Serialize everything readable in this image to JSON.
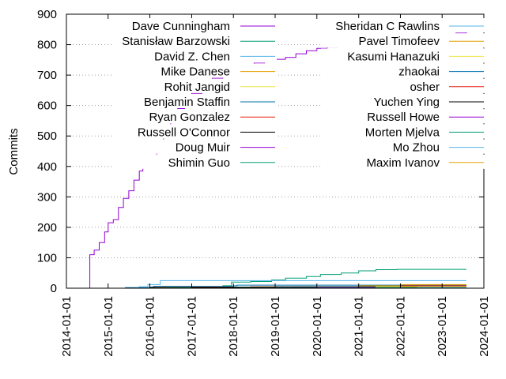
{
  "chart_data": {
    "type": "line",
    "title": "",
    "xlabel": "",
    "ylabel": "Commits",
    "x_type": "date",
    "xlim": [
      "2014-01-01",
      "2024-01-01"
    ],
    "ylim": [
      0,
      900
    ],
    "x_ticks": [
      "2014-01-01",
      "2015-01-01",
      "2016-01-01",
      "2017-01-01",
      "2018-01-01",
      "2019-01-01",
      "2020-01-01",
      "2021-01-01",
      "2022-01-01",
      "2023-01-01",
      "2024-01-01"
    ],
    "y_ticks": [
      0,
      100,
      200,
      300,
      400,
      500,
      600,
      700,
      800,
      900
    ],
    "grid": "horizontal dotted at y ticks 300 and above",
    "legend_placement": "top, two columns",
    "series": [
      {
        "name": "Dave Cunningham",
        "color": "#9400d3",
        "points": [
          [
            "2014-07-10",
            0
          ],
          [
            "2014-07-25",
            110
          ],
          [
            "2014-09-01",
            125
          ],
          [
            "2014-10-15",
            150
          ],
          [
            "2014-12-01",
            185
          ],
          [
            "2015-01-01",
            215
          ],
          [
            "2015-02-15",
            225
          ],
          [
            "2015-04-01",
            265
          ],
          [
            "2015-05-15",
            295
          ],
          [
            "2015-07-01",
            320
          ],
          [
            "2015-08-15",
            355
          ],
          [
            "2015-10-01",
            385
          ],
          [
            "2015-11-01",
            405
          ],
          [
            "2016-01-01",
            425
          ],
          [
            "2016-03-01",
            455
          ],
          [
            "2016-05-01",
            500
          ],
          [
            "2016-07-01",
            550
          ],
          [
            "2016-09-01",
            590
          ],
          [
            "2016-11-01",
            620
          ],
          [
            "2017-01-01",
            640
          ],
          [
            "2017-04-01",
            665
          ],
          [
            "2017-07-01",
            690
          ],
          [
            "2017-10-01",
            710
          ],
          [
            "2018-01-01",
            725
          ],
          [
            "2018-04-01",
            735
          ],
          [
            "2018-07-01",
            740
          ],
          [
            "2018-10-01",
            745
          ],
          [
            "2019-01-01",
            752
          ],
          [
            "2019-04-01",
            758
          ],
          [
            "2019-07-01",
            770
          ],
          [
            "2019-10-01",
            780
          ],
          [
            "2020-01-01",
            788
          ],
          [
            "2020-04-01",
            792
          ],
          [
            "2020-07-01",
            796
          ],
          [
            "2021-01-01",
            800
          ],
          [
            "2021-07-01",
            808
          ],
          [
            "2022-01-01",
            815
          ],
          [
            "2022-07-01",
            822
          ],
          [
            "2023-01-01",
            830
          ],
          [
            "2023-05-01",
            838
          ],
          [
            "2023-08-01",
            842
          ]
        ]
      },
      {
        "name": "Stanisław Barzowski",
        "color": "#009e73",
        "points": [
          [
            "2014-11-01",
            0
          ],
          [
            "2015-06-01",
            1
          ],
          [
            "2016-06-01",
            3
          ],
          [
            "2017-06-01",
            5
          ],
          [
            "2017-10-01",
            8
          ],
          [
            "2017-12-15",
            20
          ],
          [
            "2018-06-01",
            22
          ],
          [
            "2018-12-01",
            27
          ],
          [
            "2019-04-01",
            33
          ],
          [
            "2019-10-01",
            38
          ],
          [
            "2020-02-01",
            45
          ],
          [
            "2020-08-01",
            50
          ],
          [
            "2021-01-01",
            57
          ],
          [
            "2021-06-01",
            61
          ],
          [
            "2021-12-01",
            62
          ],
          [
            "2023-08-01",
            62
          ]
        ]
      },
      {
        "name": "David Z. Chen",
        "color": "#56b4e9",
        "points": [
          [
            "2015-06-01",
            0
          ],
          [
            "2015-10-01",
            5
          ],
          [
            "2015-12-15",
            12
          ],
          [
            "2016-04-01",
            25
          ],
          [
            "2023-08-01",
            25
          ]
        ]
      },
      {
        "name": "Mike Danese",
        "color": "#e69f00",
        "points": [
          [
            "2015-03-01",
            0
          ],
          [
            "2016-06-01",
            2
          ],
          [
            "2019-01-01",
            3
          ],
          [
            "2021-01-01",
            4
          ],
          [
            "2023-08-01",
            4
          ]
        ]
      },
      {
        "name": "Rohit Jangid",
        "color": "#f0e442",
        "points": [
          [
            "2016-01-01",
            0
          ],
          [
            "2016-03-01",
            2
          ],
          [
            "2018-01-01",
            3
          ],
          [
            "2023-08-01",
            3
          ]
        ]
      },
      {
        "name": "Benjamin Staffin",
        "color": "#0072b2",
        "points": [
          [
            "2014-11-01",
            0
          ],
          [
            "2015-06-01",
            2
          ],
          [
            "2016-02-01",
            6
          ],
          [
            "2018-01-01",
            8
          ],
          [
            "2018-02-01",
            10
          ],
          [
            "2023-08-01",
            10
          ]
        ]
      },
      {
        "name": "Ryan Gonzalez",
        "color": "#e51e10",
        "points": [
          [
            "2016-01-01",
            0
          ],
          [
            "2016-06-01",
            4
          ],
          [
            "2018-06-01",
            5
          ],
          [
            "2023-08-01",
            5
          ]
        ]
      },
      {
        "name": "Russell O'Connor",
        "color": "#000000",
        "points": [
          [
            "2015-06-01",
            0
          ],
          [
            "2016-01-01",
            3
          ],
          [
            "2019-01-01",
            5
          ],
          [
            "2023-08-01",
            5
          ]
        ]
      },
      {
        "name": "Doug Muir",
        "color": "#9400d3",
        "points": [
          [
            "2015-01-01",
            0
          ],
          [
            "2016-06-01",
            1
          ],
          [
            "2023-08-01",
            1
          ]
        ]
      },
      {
        "name": "Shimin Guo",
        "color": "#009e73",
        "points": [
          [
            "2016-01-01",
            0
          ],
          [
            "2016-06-01",
            2
          ],
          [
            "2018-01-01",
            3
          ],
          [
            "2023-08-01",
            3
          ]
        ]
      },
      {
        "name": "Sheridan C Rawlins",
        "color": "#56b4e9",
        "points": [
          [
            "2017-01-01",
            0
          ],
          [
            "2019-01-01",
            3
          ],
          [
            "2023-08-01",
            3
          ]
        ]
      },
      {
        "name": "Pavel Timofeev",
        "color": "#e69f00",
        "points": [
          [
            "2020-01-01",
            0
          ],
          [
            "2021-01-01",
            8
          ],
          [
            "2022-01-01",
            12
          ],
          [
            "2023-08-01",
            12
          ]
        ]
      },
      {
        "name": "Kasumi Hanazuki",
        "color": "#f0e442",
        "points": [
          [
            "2021-01-01",
            0
          ],
          [
            "2021-06-01",
            5
          ],
          [
            "2023-08-01",
            5
          ]
        ]
      },
      {
        "name": "zhaokai",
        "color": "#0072b2",
        "points": [
          [
            "2019-01-01",
            0
          ],
          [
            "2019-06-01",
            2
          ],
          [
            "2023-08-01",
            2
          ]
        ]
      },
      {
        "name": "osher",
        "color": "#e51e10",
        "points": [
          [
            "2021-01-01",
            0
          ],
          [
            "2022-01-01",
            8
          ],
          [
            "2023-08-01",
            8
          ]
        ]
      },
      {
        "name": "Yuchen Ying",
        "color": "#000000",
        "points": [
          [
            "2015-06-01",
            0
          ],
          [
            "2017-01-01",
            2
          ],
          [
            "2023-08-01",
            2
          ]
        ]
      },
      {
        "name": "Russell Howe",
        "color": "#9400d3",
        "points": [
          [
            "2019-01-01",
            0
          ],
          [
            "2020-01-01",
            1
          ],
          [
            "2023-08-01",
            1
          ]
        ]
      },
      {
        "name": "Morten Mjelva",
        "color": "#009e73",
        "points": [
          [
            "2021-01-01",
            0
          ],
          [
            "2021-06-01",
            2
          ],
          [
            "2023-08-01",
            2
          ]
        ]
      },
      {
        "name": "Mo Zhou",
        "color": "#56b4e9",
        "points": [
          [
            "2022-01-01",
            0
          ],
          [
            "2022-06-01",
            3
          ],
          [
            "2023-08-01",
            3
          ]
        ]
      },
      {
        "name": "Maxim Ivanov",
        "color": "#e69f00",
        "points": [
          [
            "2021-06-01",
            0
          ],
          [
            "2022-01-01",
            6
          ],
          [
            "2023-08-01",
            6
          ]
        ]
      }
    ]
  }
}
